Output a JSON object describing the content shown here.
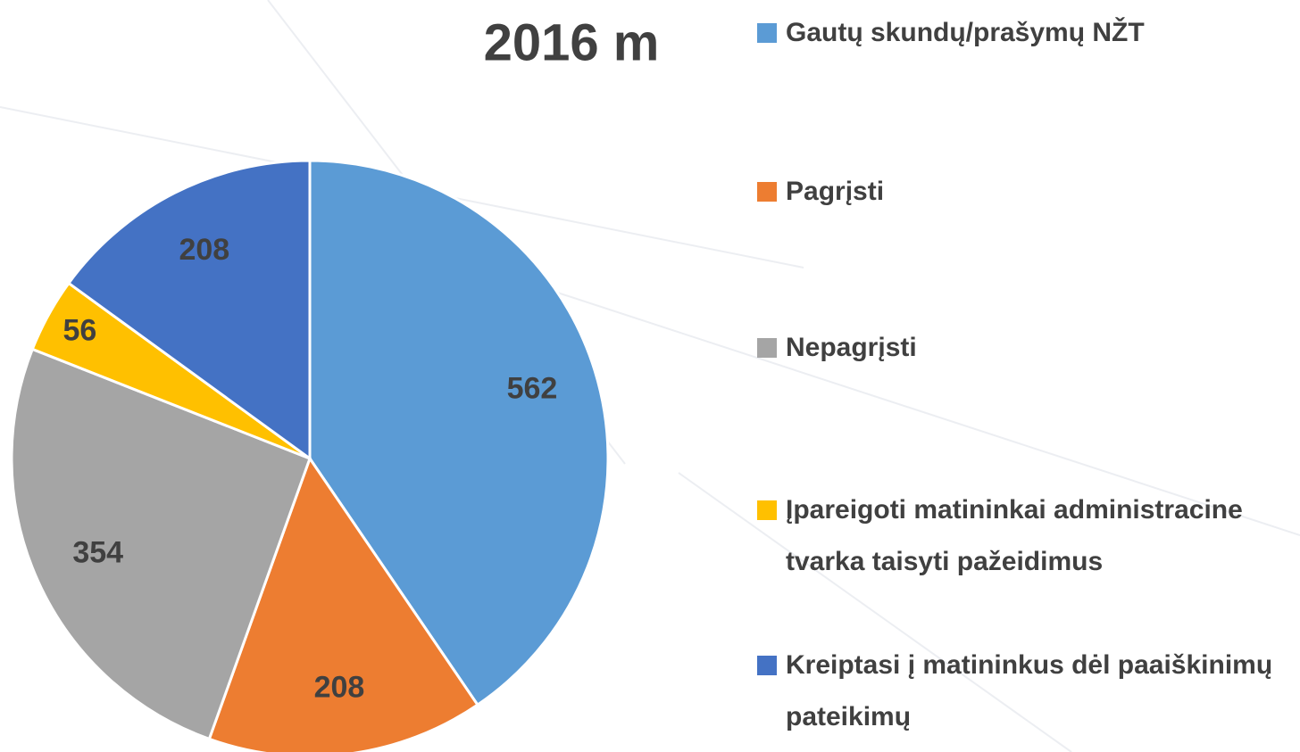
{
  "chart_data": {
    "type": "pie",
    "title": "2016 m",
    "categories": [
      "Gautų skundų/prašymų NŽT",
      "Pagrįsti",
      "Nepagrįsti",
      "Įpareigoti matininkai administracine tvarka taisyti pažeidimus",
      "Kreiptasi į matininkus dėl paaiškinimų pateikimų"
    ],
    "values": [
      562,
      208,
      354,
      56,
      208
    ],
    "colors": [
      "#5b9bd5",
      "#ed7d31",
      "#a5a5a5",
      "#ffc000",
      "#4472c4"
    ],
    "legend": "right"
  }
}
